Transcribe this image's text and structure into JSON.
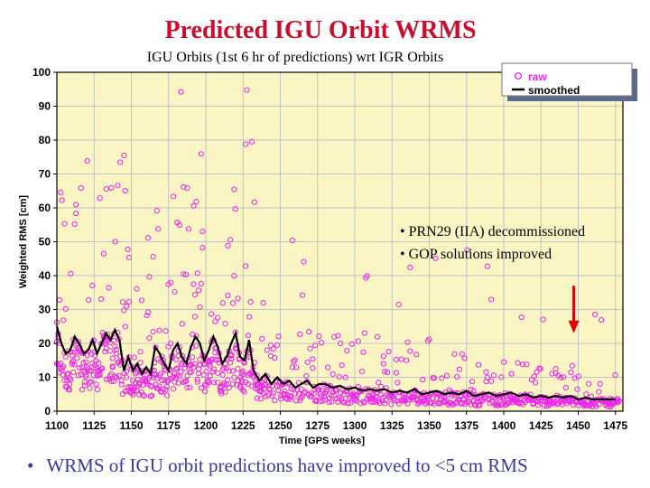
{
  "slide": {
    "title": "Predicted IGU Orbit WRMS",
    "bullet": "WRMS of IGU orbit predictions have improved to <5 cm RMS",
    "bullet_symbol": "•"
  },
  "colors": {
    "title": "#c8102e",
    "plot_background": "#faf5c3",
    "grid": "#bfc4c8",
    "raw": "#ee22ee",
    "smoothed": "#000000",
    "arrow": "#e00000",
    "bullet_text": "#3a3aa0"
  },
  "chart_data": {
    "type": "scatter",
    "title": "IGU Orbits (1st 6 hr of predictions) wrt IGR Orbits",
    "xlabel": "Time [GPS weeks]",
    "ylabel": "Weighted RMS [cm]",
    "xlim": [
      1100,
      1480
    ],
    "ylim": [
      0,
      100
    ],
    "xticks": [
      1100,
      1125,
      1150,
      1175,
      1200,
      1225,
      1250,
      1275,
      1300,
      1325,
      1350,
      1375,
      1400,
      1425,
      1450,
      1475
    ],
    "yticks": [
      0,
      10,
      20,
      30,
      40,
      50,
      60,
      70,
      80,
      90,
      100
    ],
    "grid": true,
    "legend": {
      "position": "top-right",
      "entries": [
        {
          "label": "raw",
          "marker": "circle"
        },
        {
          "label": "smoothed",
          "marker": "line"
        }
      ]
    },
    "annotations": [
      "• PRN29 (IIA) decommissioned",
      "• GOP solutions improved"
    ],
    "arrow": {
      "x": 1447,
      "y_from": 37,
      "y_to": 23
    },
    "series": [
      {
        "name": "smoothed",
        "style": "line",
        "x": [
          1100,
          1103,
          1106,
          1109,
          1112,
          1115,
          1118,
          1121,
          1124,
          1127,
          1130,
          1133,
          1136,
          1139,
          1142,
          1145,
          1148,
          1151,
          1154,
          1157,
          1160,
          1163,
          1166,
          1169,
          1172,
          1175,
          1178,
          1181,
          1184,
          1187,
          1190,
          1193,
          1196,
          1199,
          1202,
          1205,
          1208,
          1211,
          1214,
          1217,
          1220,
          1223,
          1226,
          1229,
          1232,
          1236,
          1240,
          1244,
          1248,
          1252,
          1256,
          1260,
          1264,
          1268,
          1272,
          1276,
          1280,
          1285,
          1290,
          1295,
          1300,
          1305,
          1310,
          1315,
          1320,
          1325,
          1330,
          1335,
          1340,
          1345,
          1350,
          1355,
          1360,
          1365,
          1370,
          1375,
          1380,
          1385,
          1390,
          1395,
          1400,
          1405,
          1410,
          1415,
          1420,
          1425,
          1430,
          1435,
          1440,
          1445,
          1450,
          1455,
          1460,
          1465,
          1470,
          1475
        ],
        "y": [
          25,
          20,
          17,
          18,
          22,
          20,
          17,
          18,
          21,
          17,
          20,
          23,
          21,
          24,
          21,
          12,
          16,
          12,
          14,
          11,
          13,
          11,
          19,
          17,
          14,
          12,
          18,
          20,
          16,
          14,
          19,
          22,
          20,
          15,
          18,
          22,
          19,
          14,
          16,
          20,
          23,
          16,
          15,
          21,
          12,
          9,
          11,
          8,
          10,
          8,
          9,
          7,
          8,
          9,
          7,
          8,
          8,
          7,
          7.5,
          6.5,
          7,
          6,
          6.5,
          6,
          6.5,
          5.5,
          6,
          5.5,
          6.5,
          5,
          5.5,
          6,
          5,
          5.5,
          5,
          6,
          4.5,
          5,
          5.5,
          4.5,
          5,
          5.5,
          4.5,
          5,
          4,
          4.5,
          4,
          4.5,
          4,
          4.5,
          3.5,
          4,
          3.5,
          3.5,
          3.5,
          3.5
        ]
      }
    ]
  }
}
